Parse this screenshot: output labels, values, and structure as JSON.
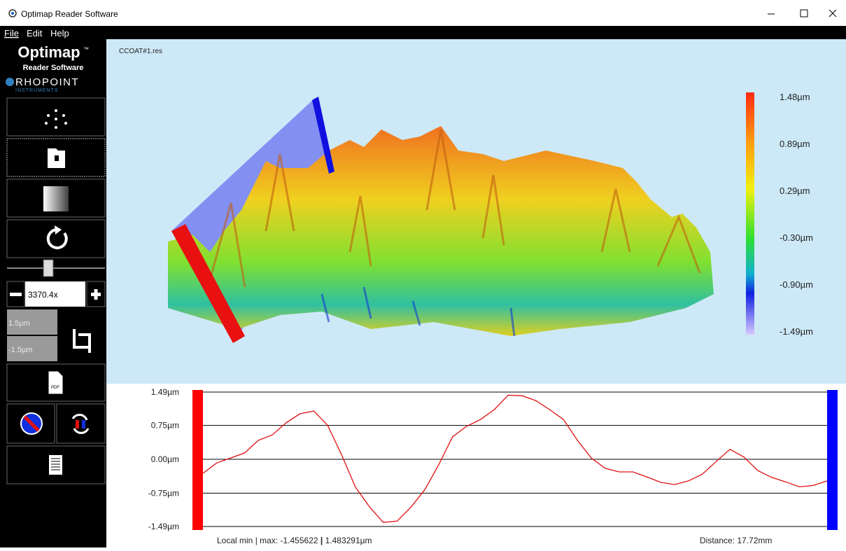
{
  "window": {
    "title": "Optimap Reader Software"
  },
  "menu": [
    "File",
    "Edit",
    "Help"
  ],
  "sidebar": {
    "logo": "Optimap",
    "logo_tm": "™",
    "logo_sub": "Reader Software",
    "brand": "RHOPOINT",
    "brand_sub": "INSTRUMENTS",
    "zoom": "3370.4x",
    "range_max": "1.5µm",
    "range_min": "-1.5µm",
    "pdf": "PDF"
  },
  "view3d": {
    "file": "CCOAT#1.res",
    "scale_labels": [
      "1.48µm",
      "0.89µm",
      "0.29µm",
      "-0.30µm",
      "-0.90µm",
      "-1.49µm"
    ]
  },
  "chart_data": {
    "type": "line",
    "categories": [
      null,
      null,
      null,
      null,
      null,
      null,
      null,
      null,
      null,
      null,
      null,
      null,
      null,
      null,
      null,
      null,
      null,
      null,
      null,
      null,
      null,
      null,
      null,
      null,
      null,
      null,
      null,
      null,
      null,
      null,
      null,
      null,
      null,
      null,
      null,
      null,
      null,
      null,
      null,
      null,
      null,
      null,
      null,
      null,
      null,
      null
    ],
    "series": [
      {
        "color": "#e01010",
        "values": [
          -0.31,
          -0.08,
          0.03,
          0.14,
          0.42,
          0.54,
          0.81,
          1.01,
          1.07,
          0.75,
          0.1,
          -0.62,
          -1.05,
          -1.4,
          -1.37,
          -1.06,
          -0.67,
          -0.12,
          0.5,
          0.73,
          0.88,
          1.1,
          1.42,
          1.41,
          1.3,
          1.1,
          0.88,
          0.42,
          0.03,
          -0.2,
          -0.28,
          -0.28,
          -0.39,
          -0.51,
          -0.56,
          -0.48,
          -0.33,
          -0.05,
          0.22,
          0.05,
          -0.25,
          -0.4,
          -0.5,
          -0.61,
          -0.58,
          -0.48
        ]
      }
    ],
    "ylim": [
      -1.49,
      1.49
    ],
    "yticks": [
      {
        "value": 1.49,
        "label": "1.49µm"
      },
      {
        "value": 0.75,
        "label": "0.75µm"
      },
      {
        "value": 0,
        "label": "0.00µm"
      },
      {
        "value": -0.75,
        "label": "-0.75µm"
      },
      {
        "value": -1.49,
        "label": "-1.49µm"
      }
    ],
    "grid": true
  },
  "footer": {
    "label": "Local min | max:",
    "min": "-1.455622",
    "separator": "|",
    "max": "1.483291µm",
    "distance": "Distance: 17.72mm"
  }
}
